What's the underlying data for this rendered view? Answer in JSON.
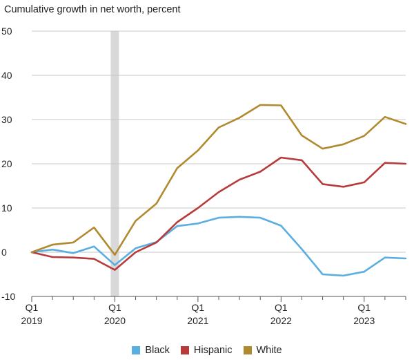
{
  "chart_data": {
    "type": "line",
    "title": "Cumulative growth in net worth, percent",
    "xlabel": "",
    "ylabel": "",
    "ylim": [
      -10,
      50
    ],
    "yticks": [
      -10,
      0,
      10,
      20,
      30,
      40,
      50
    ],
    "grid": true,
    "legend_position": "bottom",
    "x": [
      "2019Q1",
      "2019Q2",
      "2019Q3",
      "2019Q4",
      "2020Q1",
      "2020Q2",
      "2020Q3",
      "2020Q4",
      "2021Q1",
      "2021Q2",
      "2021Q3",
      "2021Q4",
      "2022Q1",
      "2022Q2",
      "2022Q3",
      "2022Q4",
      "2023Q1",
      "2023Q2",
      "2023Q3"
    ],
    "x_tick_labels": [
      {
        "line1": "Q1",
        "line2": "2019"
      },
      {
        "line1": "Q1",
        "line2": "2020"
      },
      {
        "line1": "Q1",
        "line2": "2021"
      },
      {
        "line1": "Q1",
        "line2": "2022"
      },
      {
        "line1": "Q1",
        "line2": "2023"
      }
    ],
    "shaded_region": {
      "from": "2020Q1",
      "to": "2020Q1",
      "color": "#d9d9d9"
    },
    "series": [
      {
        "name": "Black",
        "color": "#5aaee0",
        "values": [
          0,
          0.6,
          -0.2,
          1.3,
          -2.9,
          0.9,
          2.3,
          5.9,
          6.5,
          7.8,
          8.0,
          7.8,
          6.0,
          0.7,
          -5.0,
          -5.3,
          -4.4,
          -1.2,
          -1.4
        ]
      },
      {
        "name": "Hispanic",
        "color": "#b83b3b",
        "values": [
          0,
          -1.1,
          -1.2,
          -1.5,
          -4.0,
          0.0,
          2.2,
          6.8,
          10.0,
          13.6,
          16.4,
          18.2,
          21.4,
          20.8,
          15.4,
          14.8,
          15.8,
          20.2,
          20.0
        ]
      },
      {
        "name": "White",
        "color": "#b08a2f",
        "values": [
          0,
          1.7,
          2.2,
          5.6,
          -0.6,
          7.1,
          11.0,
          19.0,
          23.0,
          28.2,
          30.4,
          33.3,
          33.2,
          26.4,
          23.4,
          24.4,
          26.3,
          30.6,
          29.0
        ]
      }
    ]
  }
}
